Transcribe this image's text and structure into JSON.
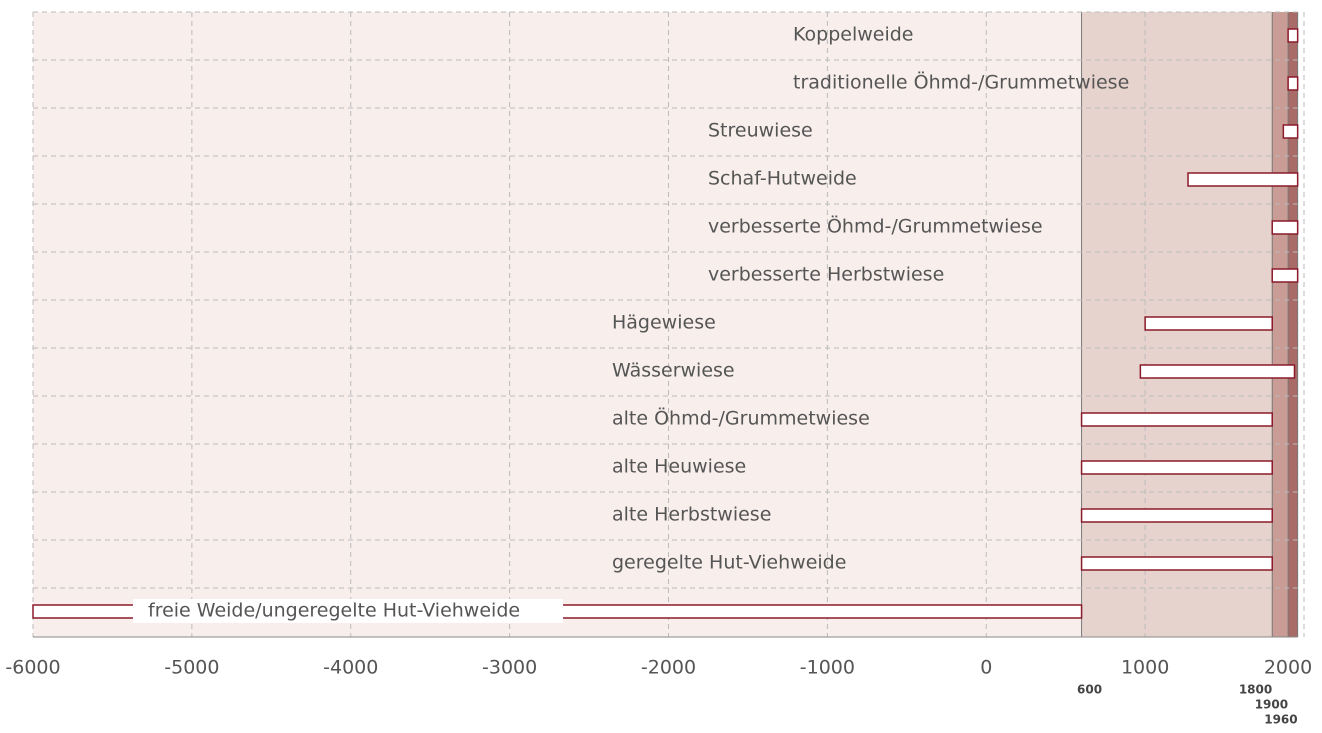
{
  "chart_data": {
    "type": "range_bar",
    "categories": [
      "Koppelweide",
      "traditionelle Öhmd-/Grummetwiese",
      "Streuwiese",
      "Schaf-Hutweide",
      "verbesserte Öhmd-/Grummetwiese",
      "verbesserte Herbstwiese",
      "Hägewiese",
      "Wässerwiese",
      "alte Öhmd-/Grummetwiese",
      "alte Heuwiese",
      "alte Herbstwiese",
      "geregelte Hut-Viehweide",
      "freie Weide/ungeregelte Hut-Viehweide"
    ],
    "starts": [
      1900,
      1900,
      1870,
      1270,
      1800,
      1800,
      1000,
      970,
      600,
      600,
      600,
      600,
      -6000
    ],
    "ends": [
      1960,
      1960,
      1960,
      1960,
      1960,
      1960,
      1800,
      1940,
      1800,
      1800,
      1800,
      1800,
      600
    ],
    "bar_color": "#8b1a2a",
    "xlim": [
      -6000,
      2000
    ],
    "xticks": [
      -6000,
      -5000,
      -4000,
      -3000,
      -2000,
      -1000,
      0,
      1000,
      2000
    ],
    "grid": true,
    "periods": [
      600,
      1800,
      1900,
      1960
    ],
    "period_colors": [
      "#e7d3cd",
      "#c99c96",
      "#a96b67"
    ],
    "background": "#f8efec"
  }
}
